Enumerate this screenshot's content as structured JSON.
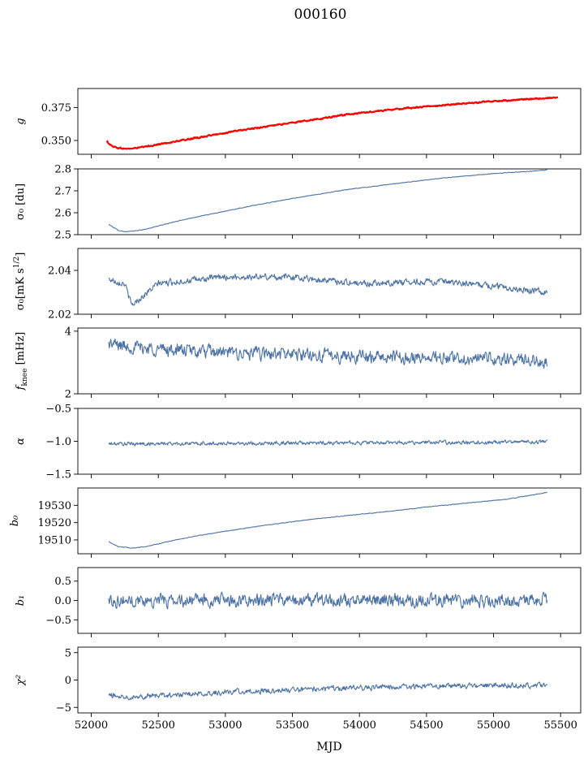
{
  "figure": {
    "title": "000160",
    "xlabel": "MJD"
  },
  "colors": {
    "series": "#4c72a4",
    "overlay": "#ff0000",
    "axis": "#000000",
    "background": "#ffffff"
  },
  "chart_data": [
    {
      "type": "line",
      "ylabel": "g",
      "xlim": [
        51900,
        55650
      ],
      "ylim": [
        0.3395,
        0.3895
      ],
      "yticks": [
        0.35,
        0.375
      ],
      "ytick_labels": [
        "0.350",
        "0.375"
      ],
      "xticks": [
        52000,
        52500,
        53000,
        53500,
        54000,
        54500,
        55000,
        55500
      ],
      "show_xtick_labels": false,
      "series": [
        {
          "style": "blue",
          "x": [
            52110,
            52150,
            52200,
            52250,
            52300,
            52400,
            52500,
            52700,
            52900,
            53100,
            53300,
            53500,
            53700,
            53900,
            54100,
            54300,
            54500,
            54700,
            54900,
            55100,
            55300,
            55400
          ],
          "y": [
            0.349,
            0.346,
            0.3443,
            0.3437,
            0.3438,
            0.3452,
            0.347,
            0.3505,
            0.354,
            0.3575,
            0.3605,
            0.3635,
            0.3665,
            0.3695,
            0.372,
            0.374,
            0.3758,
            0.3775,
            0.379,
            0.3805,
            0.3815,
            0.3822
          ],
          "noise": 0.0005
        },
        {
          "style": "red",
          "x": [
            52115,
            52150,
            52200,
            52250,
            52300,
            52400,
            52500,
            52700,
            52900,
            53100,
            53300,
            53500,
            53700,
            53900,
            54100,
            54300,
            54500,
            54700,
            54900,
            55100,
            55300,
            55480
          ],
          "y": [
            0.3495,
            0.346,
            0.3443,
            0.3437,
            0.3438,
            0.3452,
            0.347,
            0.3505,
            0.354,
            0.3575,
            0.3605,
            0.3635,
            0.3665,
            0.3695,
            0.372,
            0.374,
            0.3758,
            0.3775,
            0.379,
            0.3805,
            0.3818,
            0.3826
          ],
          "noise": 0.0008
        }
      ]
    },
    {
      "type": "line",
      "ylabel": "σ₀ [du]",
      "xlim": [
        51900,
        55650
      ],
      "ylim": [
        2.5,
        2.8
      ],
      "yticks": [
        2.5,
        2.6,
        2.7,
        2.8
      ],
      "ytick_labels": [
        "2.5",
        "2.6",
        "2.7",
        "2.8"
      ],
      "xticks": [
        52000,
        52500,
        53000,
        53500,
        54000,
        54500,
        55000,
        55500
      ],
      "show_xtick_labels": false,
      "series": [
        {
          "style": "blue",
          "x": [
            52130,
            52200,
            52250,
            52300,
            52400,
            52500,
            52700,
            52900,
            53100,
            53300,
            53500,
            53700,
            53900,
            54100,
            54300,
            54500,
            54700,
            54900,
            55100,
            55300,
            55400
          ],
          "y": [
            2.547,
            2.52,
            2.514,
            2.515,
            2.524,
            2.54,
            2.57,
            2.595,
            2.62,
            2.643,
            2.665,
            2.685,
            2.705,
            2.72,
            2.735,
            2.75,
            2.763,
            2.773,
            2.783,
            2.79,
            2.795
          ],
          "noise": 0.002
        }
      ]
    },
    {
      "type": "line",
      "ylabel": "σ₀[mK s^1/2]",
      "xlim": [
        51900,
        55650
      ],
      "ylim": [
        2.02,
        2.05
      ],
      "yticks": [
        2.02,
        2.04
      ],
      "ytick_labels": [
        "2.02",
        "2.04"
      ],
      "xticks": [
        52000,
        52500,
        53000,
        53500,
        54000,
        54500,
        55000,
        55500
      ],
      "show_xtick_labels": false,
      "series": [
        {
          "style": "blue",
          "x": [
            52130,
            52250,
            52300,
            52500,
            53000,
            53500,
            54000,
            54500,
            55000,
            55400
          ],
          "y": [
            2.036,
            2.034,
            2.024,
            2.034,
            2.037,
            2.037,
            2.034,
            2.035,
            2.033,
            2.03
          ],
          "noise": 0.0022
        }
      ]
    },
    {
      "type": "line",
      "ylabel": "f_knee [mHz]",
      "xlim": [
        51900,
        55650
      ],
      "ylim": [
        2,
        4.1
      ],
      "yticks": [
        2,
        4
      ],
      "ytick_labels": [
        "2",
        "4"
      ],
      "xticks": [
        52000,
        52500,
        53000,
        53500,
        54000,
        54500,
        55000,
        55500
      ],
      "show_xtick_labels": false,
      "series": [
        {
          "style": "blue",
          "x": [
            52130,
            52300,
            52600,
            53000,
            53500,
            54000,
            54500,
            55000,
            55400
          ],
          "y": [
            3.6,
            3.5,
            3.4,
            3.3,
            3.25,
            3.2,
            3.15,
            3.1,
            3.05
          ],
          "noise": 0.32
        }
      ]
    },
    {
      "type": "line",
      "ylabel": "α",
      "xlim": [
        51900,
        55650
      ],
      "ylim": [
        -1.5,
        -0.5
      ],
      "yticks": [
        -1.5,
        -1.0,
        -0.5
      ],
      "ytick_labels": [
        "−1.5",
        "−1.0",
        "−0.5"
      ],
      "xticks": [
        52000,
        52500,
        53000,
        53500,
        54000,
        54500,
        55000,
        55500
      ],
      "show_xtick_labels": false,
      "series": [
        {
          "style": "blue",
          "x": [
            52130,
            55400
          ],
          "y": [
            -1.04,
            -1.01
          ],
          "noise": 0.045
        }
      ]
    },
    {
      "type": "line",
      "ylabel": "b₀",
      "xlim": [
        51900,
        55650
      ],
      "ylim": [
        19502,
        19540
      ],
      "yticks": [
        19510,
        19520,
        19530
      ],
      "ytick_labels": [
        "19510",
        "19520",
        "19530"
      ],
      "xticks": [
        52000,
        52500,
        53000,
        53500,
        54000,
        54500,
        55000,
        55500
      ],
      "show_xtick_labels": false,
      "series": [
        {
          "style": "blue",
          "x": [
            52130,
            52200,
            52300,
            52400,
            52600,
            52800,
            53000,
            53300,
            53600,
            53900,
            54200,
            54500,
            54800,
            55100,
            55400
          ],
          "y": [
            19509,
            19506.2,
            19505.3,
            19506,
            19509.5,
            19512.5,
            19515,
            19518.5,
            19521.5,
            19524,
            19526.3,
            19529,
            19531.3,
            19533.5,
            19537.5
          ],
          "noise": 0.25
        }
      ]
    },
    {
      "type": "line",
      "ylabel": "b₁",
      "xlim": [
        51900,
        55650
      ],
      "ylim": [
        -0.85,
        0.85
      ],
      "yticks": [
        -0.5,
        0.0,
        0.5
      ],
      "ytick_labels": [
        "−0.5",
        "0.0",
        "0.5"
      ],
      "xticks": [
        52000,
        52500,
        53000,
        53500,
        54000,
        54500,
        55000,
        55500
      ],
      "show_xtick_labels": false,
      "series": [
        {
          "style": "blue",
          "x": [
            52130,
            55400
          ],
          "y": [
            0.0,
            0.0
          ],
          "noise": 0.25
        }
      ]
    },
    {
      "type": "line",
      "ylabel": "χ²",
      "xlim": [
        51900,
        55650
      ],
      "ylim": [
        -6,
        6
      ],
      "yticks": [
        -5,
        0,
        5
      ],
      "ytick_labels": [
        "−5",
        "0",
        "5"
      ],
      "xticks": [
        52000,
        52500,
        53000,
        53500,
        54000,
        54500,
        55000,
        55500
      ],
      "xtick_labels": [
        "52000",
        "52500",
        "53000",
        "53500",
        "54000",
        "54500",
        "55000",
        "55500"
      ],
      "show_xtick_labels": true,
      "series": [
        {
          "style": "blue",
          "x": [
            52130,
            52300,
            52600,
            53000,
            53500,
            54000,
            54500,
            55000,
            55400
          ],
          "y": [
            -2.8,
            -3.0,
            -2.8,
            -2.2,
            -1.8,
            -1.4,
            -1.1,
            -1.0,
            -1.0
          ],
          "noise": 0.75
        }
      ]
    }
  ]
}
